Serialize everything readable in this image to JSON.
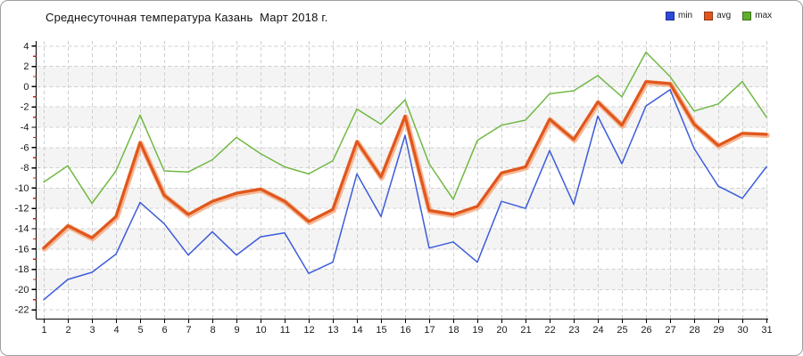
{
  "header": {
    "title": "Среднесуточная температура Казань  Март 2018 г.",
    "legend": [
      {
        "label": "min",
        "color": "#2c49d8"
      },
      {
        "label": "avg",
        "color": "#e0571d"
      },
      {
        "label": "max",
        "color": "#5fae2e"
      }
    ]
  },
  "chart_data": {
    "type": "line",
    "title": "Среднесуточная температура Казань  Март 2018 г.",
    "xlabel": "",
    "ylabel": "",
    "x_categories": [
      "1",
      "2",
      "3",
      "4",
      "5",
      "6",
      "7",
      "8",
      "9",
      "10",
      "11",
      "12",
      "13",
      "14",
      "15",
      "16",
      "17",
      "18",
      "19",
      "20",
      "21",
      "22",
      "23",
      "24",
      "25",
      "26",
      "27",
      "28",
      "29",
      "30",
      "31"
    ],
    "ylim": [
      -22,
      4
    ],
    "y_major_step": 2,
    "y_minor_step": 1,
    "grid": "dashed, vertical at every day, horizontal every 2 degrees, alternating light bands",
    "legend_position": "top-right",
    "series": [
      {
        "name": "min",
        "color": "#3d5cdb",
        "width": 1.5,
        "values": [
          -21.0,
          -19.0,
          -18.3,
          -16.5,
          -11.4,
          -13.5,
          -16.6,
          -14.3,
          -16.6,
          -14.8,
          -14.4,
          -18.4,
          -17.3,
          -8.6,
          -12.8,
          -4.8,
          -15.9,
          -15.3,
          -17.3,
          -11.3,
          -12.0,
          -6.3,
          -11.6,
          -2.9,
          -7.6,
          -1.9,
          -0.3,
          -6.1,
          -9.8,
          -11.0,
          -7.9
        ]
      },
      {
        "name": "max",
        "color": "#70b843",
        "width": 1.5,
        "values": [
          -9.4,
          -7.8,
          -11.5,
          -8.3,
          -2.8,
          -8.3,
          -8.4,
          -7.2,
          -5.0,
          -6.6,
          -7.9,
          -8.6,
          -7.3,
          -2.2,
          -3.7,
          -1.3,
          -7.6,
          -11.1,
          -5.3,
          -3.8,
          -3.3,
          -0.7,
          -0.4,
          1.1,
          -1.0,
          3.4,
          1.0,
          -2.4,
          -1.7,
          0.5,
          -3.0
        ]
      },
      {
        "name": "avg",
        "color": "#e0571d",
        "glow": "#f5b089",
        "width": 3.2,
        "values": [
          -15.9,
          -13.7,
          -14.9,
          -12.8,
          -5.5,
          -10.7,
          -12.6,
          -11.3,
          -10.5,
          -10.1,
          -11.3,
          -13.3,
          -12.1,
          -5.4,
          -8.9,
          -2.9,
          -12.2,
          -12.6,
          -11.8,
          -8.5,
          -7.9,
          -3.2,
          -5.2,
          -1.5,
          -3.8,
          0.5,
          0.3,
          -3.7,
          -5.8,
          -4.6,
          -4.7
        ]
      }
    ],
    "colors": {
      "grid": "#cfcfcf",
      "band": "#f4f4f4",
      "axis": "#000000",
      "minor_tick": "#cc2222",
      "tick_label": "#1a1a1a"
    }
  }
}
